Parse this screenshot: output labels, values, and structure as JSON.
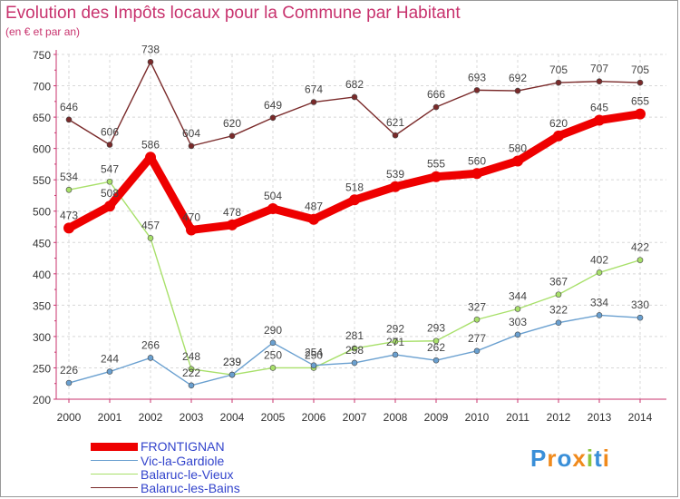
{
  "title": "Evolution des Impôts locaux pour la Commune par Habitant",
  "subtitle": "(en € et par an)",
  "logo": "Proxiti",
  "chart_data": {
    "type": "line",
    "x": [
      "2000",
      "2001",
      "2002",
      "2003",
      "2004",
      "2005",
      "2006",
      "2007",
      "2008",
      "2009",
      "2010",
      "2011",
      "2012",
      "2013",
      "2014"
    ],
    "ylim": [
      200,
      750
    ],
    "yticks": [
      200,
      250,
      300,
      350,
      400,
      450,
      500,
      550,
      600,
      650,
      700,
      750
    ],
    "grid": true,
    "series": [
      {
        "name": "Balaruc-les-Bains",
        "color": "#7a2a2a",
        "values": [
          646,
          606,
          738,
          604,
          620,
          649,
          674,
          682,
          621,
          666,
          693,
          692,
          705,
          707,
          705
        ]
      },
      {
        "name": "Balaruc-le-Vieux",
        "color": "#a8e06a",
        "values": [
          534,
          547,
          457,
          248,
          239,
          250,
          250,
          281,
          292,
          293,
          327,
          344,
          367,
          402,
          422
        ]
      },
      {
        "name": "Vic-la-Gardiole",
        "color": "#6aa0d0",
        "values": [
          226,
          244,
          266,
          222,
          239,
          290,
          254,
          258,
          271,
          262,
          277,
          303,
          322,
          334,
          330
        ]
      },
      {
        "name": "FRONTIGNAN",
        "color": "#ee0000",
        "values": [
          473,
          508,
          586,
          470,
          478,
          504,
          487,
          518,
          539,
          555,
          560,
          580,
          620,
          645,
          655
        ]
      }
    ],
    "legend": [
      "FRONTIGNAN",
      "Vic-la-Gardiole",
      "Balaruc-le-Vieux",
      "Balaruc-les-Bains"
    ]
  }
}
